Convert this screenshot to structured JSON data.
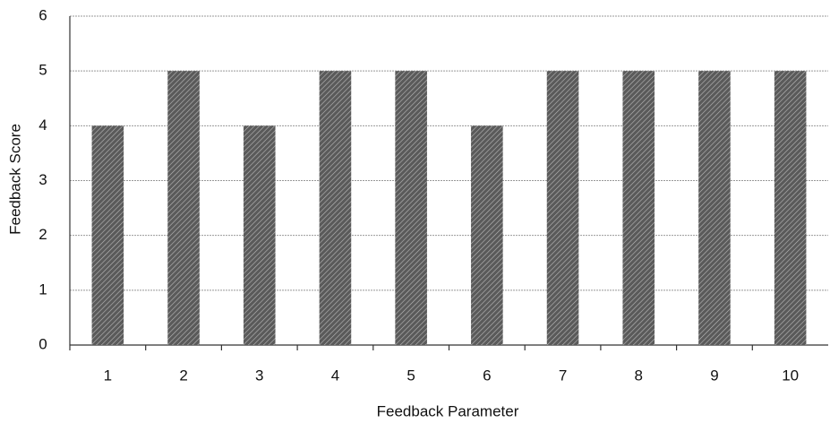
{
  "chart_data": {
    "type": "bar",
    "categories": [
      "1",
      "2",
      "3",
      "4",
      "5",
      "6",
      "7",
      "8",
      "9",
      "10"
    ],
    "values": [
      4,
      5,
      4,
      5,
      5,
      4,
      5,
      5,
      5,
      5
    ],
    "color": "#5a5a5a",
    "x_label": "Feedback Parameter",
    "y_label": "Feedback Score",
    "ylim": [
      0,
      6
    ],
    "yticks": [
      0,
      1,
      2,
      3,
      4,
      5,
      6
    ],
    "grid": true
  }
}
